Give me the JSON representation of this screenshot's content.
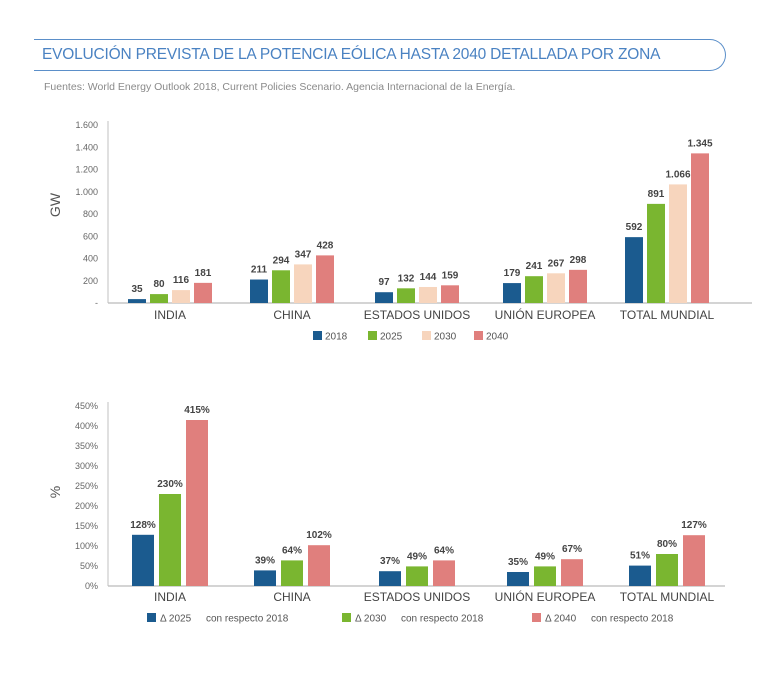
{
  "header": {
    "title": "EVOLUCIÓN PREVISTA DE LA POTENCIA EÓLICA HASTA 2040 DETALLADA POR ZONA",
    "source": "Fuentes: World Energy Outlook 2018, Current Policies Scenario. Agencia Internacional de la Energía."
  },
  "chart_data": [
    {
      "type": "bar",
      "title": "",
      "xlabel": "",
      "ylabel": "GW",
      "ylim": [
        0,
        1600
      ],
      "yticks": [
        "-",
        "200",
        "400",
        "600",
        "800",
        "1.000",
        "1.200",
        "1.400",
        "1.600"
      ],
      "categories": [
        "INDIA",
        "CHINA",
        "ESTADOS UNIDOS",
        "UNIÓN EUROPEA",
        "TOTAL MUNDIAL"
      ],
      "series": [
        {
          "name": "2018",
          "color": "#1b5b8f",
          "values": [
            35,
            211,
            97,
            179,
            592
          ],
          "labels": [
            "35",
            "211",
            "97",
            "179",
            "592"
          ]
        },
        {
          "name": "2025",
          "color": "#7ab630",
          "values": [
            80,
            294,
            132,
            241,
            891
          ],
          "labels": [
            "80",
            "294",
            "132",
            "241",
            "891"
          ]
        },
        {
          "name": "2030",
          "color": "#f7d5bd",
          "values": [
            116,
            347,
            144,
            267,
            1066
          ],
          "labels": [
            "116",
            "347",
            "144",
            "267",
            "1.066"
          ]
        },
        {
          "name": "2040",
          "color": "#e07f7d",
          "values": [
            181,
            428,
            159,
            298,
            1345
          ],
          "labels": [
            "181",
            "428",
            "159",
            "298",
            "1.345"
          ]
        }
      ],
      "legend": {
        "position": "bottom",
        "labels": [
          "2018",
          "2025",
          "2030",
          "2040"
        ]
      },
      "grid": false
    },
    {
      "type": "bar",
      "title": "",
      "xlabel": "",
      "ylabel": "%",
      "ylim": [
        0,
        450
      ],
      "yticks": [
        "0%",
        "50%",
        "100%",
        "150%",
        "200%",
        "250%",
        "300%",
        "350%",
        "400%",
        "450%"
      ],
      "categories": [
        "INDIA",
        "CHINA",
        "ESTADOS UNIDOS",
        "UNIÓN EUROPEA",
        "TOTAL MUNDIAL"
      ],
      "series": [
        {
          "name": "Δ 2025 con respecto 2018",
          "color": "#1b5b8f",
          "values": [
            128,
            39,
            37,
            35,
            51
          ],
          "labels": [
            "128%",
            "39%",
            "37%",
            "35%",
            "51%"
          ]
        },
        {
          "name": "Δ 2030 con respecto 2018",
          "color": "#7ab630",
          "values": [
            230,
            64,
            49,
            49,
            80
          ],
          "labels": [
            "230%",
            "64%",
            "49%",
            "49%",
            "80%"
          ]
        },
        {
          "name": "Δ 2040 con respecto 2018",
          "color": "#e07f7d",
          "values": [
            415,
            102,
            64,
            67,
            127
          ],
          "labels": [
            "415%",
            "102%",
            "64%",
            "67%",
            "127%"
          ]
        }
      ],
      "legend": {
        "position": "bottom",
        "labels": [
          {
            "delta": "Δ 2025",
            "suffix": "con respecto 2018"
          },
          {
            "delta": "Δ 2030",
            "suffix": "con respecto 2018"
          },
          {
            "delta": "Δ 2040",
            "suffix": "con respecto 2018"
          }
        ]
      },
      "grid": false
    }
  ]
}
